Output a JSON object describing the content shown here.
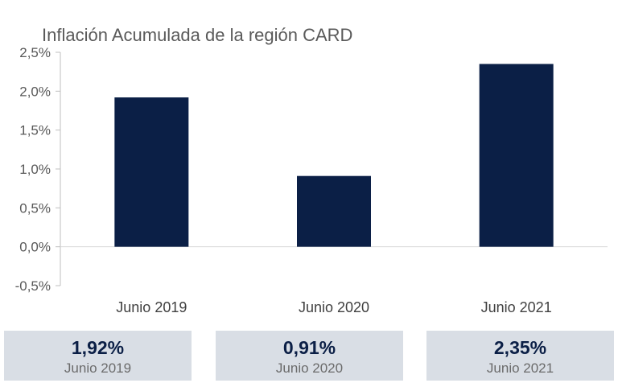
{
  "chart_data": {
    "type": "bar",
    "title": "Inflación Acumulada de la región CARD",
    "categories": [
      "Junio 2019",
      "Junio 2020",
      "Junio 2021"
    ],
    "values": [
      1.92,
      0.91,
      2.35
    ],
    "ylim": [
      -0.5,
      2.5
    ],
    "yticks": [
      2.5,
      2.0,
      1.5,
      1.0,
      0.5,
      0.0,
      -0.5
    ],
    "ytick_labels": [
      "2,5%",
      "2,0%",
      "1,5%",
      "1,0%",
      "0,5%",
      "0,0%",
      "-0,5%"
    ],
    "bar_color": "#0b1f46",
    "grid": false,
    "legend": "none"
  },
  "summary": [
    {
      "value": "1,92%",
      "label": "Junio 2019"
    },
    {
      "value": "0,91%",
      "label": "Junio 2020"
    },
    {
      "value": "2,35%",
      "label": "Junio 2021"
    }
  ],
  "colors": {
    "box_bg": "#d9dee5",
    "value_text": "#0b1f46"
  }
}
